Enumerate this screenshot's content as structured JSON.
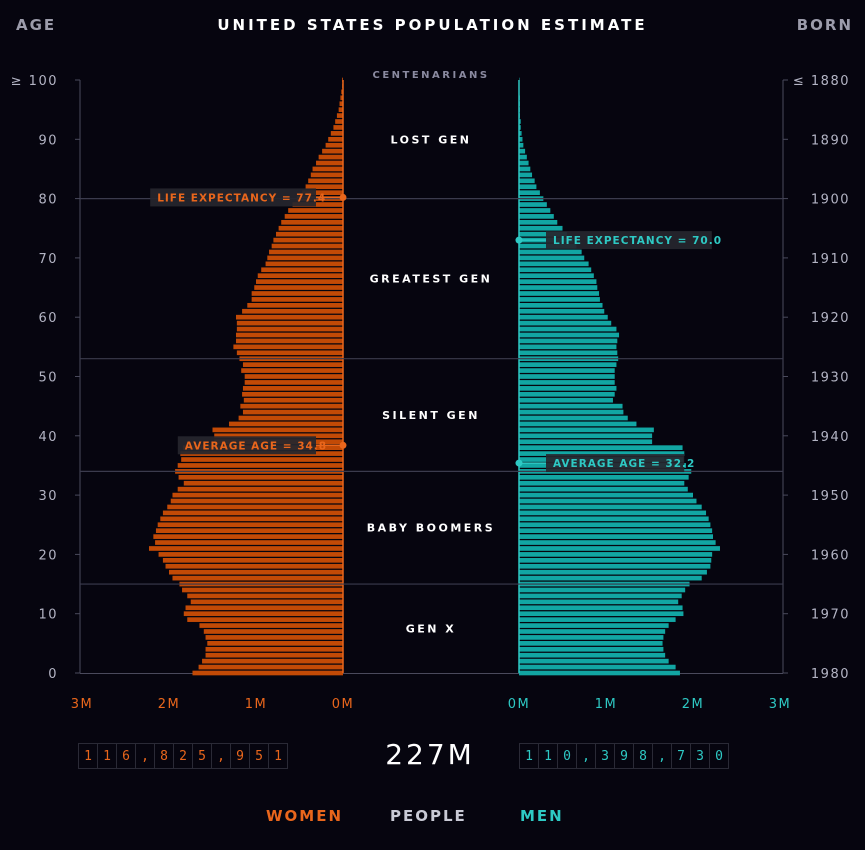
{
  "header": {
    "title": "UNITED STATES POPULATION ESTIMATE",
    "left_label": "AGE",
    "right_label": "BORN"
  },
  "colors": {
    "background": "#06050f",
    "women": "#e9661c",
    "women_dark": "#c24a06",
    "men": "#2ec9c4",
    "men_dark": "#12a6a3",
    "grid": "#3a3a4a",
    "text_muted": "#9c9cab"
  },
  "chart_data": {
    "type": "bar",
    "subtype": "population-pyramid",
    "title": "UNITED STATES POPULATION ESTIMATE",
    "age_axis": {
      "label": "AGE",
      "ticks": [
        "0",
        "10",
        "20",
        "30",
        "40",
        "50",
        "60",
        "70",
        "80",
        "90",
        "≥ 100"
      ],
      "range": [
        0,
        100
      ]
    },
    "born_axis": {
      "label": "BORN",
      "ticks": [
        "1980",
        "1970",
        "1960",
        "1950",
        "1940",
        "1930",
        "1920",
        "1910",
        "1900",
        "1890",
        "≤ 1880"
      ]
    },
    "women_axis_ticks": [
      "3M",
      "2M",
      "1M",
      "0M"
    ],
    "men_axis_ticks": [
      "0M",
      "1M",
      "2M",
      "3M"
    ],
    "x_range_millions": [
      0,
      3
    ],
    "generations": [
      {
        "name": "GEN X",
        "from_age": 0,
        "to_age": 15
      },
      {
        "name": "BABY BOOMERS",
        "from_age": 15,
        "to_age": 34
      },
      {
        "name": "SILENT GEN",
        "from_age": 34,
        "to_age": 53
      },
      {
        "name": "GREATEST GEN",
        "from_age": 53,
        "to_age": 80
      },
      {
        "name": "LOST GEN",
        "from_age": 80,
        "to_age": 100
      },
      {
        "name": "CENTENARIANS",
        "from_age": 100,
        "to_age": 100
      }
    ],
    "series": [
      {
        "name": "WOMEN",
        "values_millions": [
          1.73,
          1.66,
          1.62,
          1.58,
          1.58,
          1.56,
          1.58,
          1.6,
          1.65,
          1.79,
          1.83,
          1.81,
          1.75,
          1.79,
          1.85,
          1.88,
          1.96,
          2.0,
          2.04,
          2.07,
          2.12,
          2.23,
          2.16,
          2.18,
          2.15,
          2.13,
          2.1,
          2.07,
          2.02,
          1.98,
          1.96,
          1.9,
          1.83,
          1.89,
          1.93,
          1.9,
          1.86,
          1.87,
          1.84,
          1.48,
          1.48,
          1.5,
          1.31,
          1.2,
          1.15,
          1.18,
          1.14,
          1.16,
          1.15,
          1.13,
          1.13,
          1.17,
          1.15,
          1.19,
          1.22,
          1.26,
          1.23,
          1.23,
          1.22,
          1.22,
          1.23,
          1.16,
          1.1,
          1.05,
          1.05,
          1.02,
          1.0,
          0.98,
          0.94,
          0.89,
          0.87,
          0.85,
          0.82,
          0.8,
          0.77,
          0.74,
          0.71,
          0.67,
          0.63,
          0.58,
          0.53,
          0.47,
          0.43,
          0.4,
          0.37,
          0.35,
          0.31,
          0.28,
          0.24,
          0.2,
          0.17,
          0.14,
          0.11,
          0.09,
          0.07,
          0.05,
          0.04,
          0.03,
          0.02,
          0.01,
          0.01
        ]
      },
      {
        "name": "MEN",
        "values_millions": [
          1.85,
          1.8,
          1.72,
          1.68,
          1.66,
          1.65,
          1.66,
          1.68,
          1.72,
          1.8,
          1.89,
          1.88,
          1.83,
          1.87,
          1.91,
          1.96,
          2.1,
          2.16,
          2.2,
          2.21,
          2.22,
          2.31,
          2.26,
          2.23,
          2.22,
          2.2,
          2.18,
          2.15,
          2.1,
          2.04,
          2.0,
          1.94,
          1.9,
          1.95,
          1.98,
          1.92,
          1.89,
          1.9,
          1.88,
          1.53,
          1.53,
          1.55,
          1.35,
          1.25,
          1.2,
          1.19,
          1.08,
          1.1,
          1.12,
          1.1,
          1.1,
          1.1,
          1.12,
          1.14,
          1.13,
          1.12,
          1.13,
          1.15,
          1.12,
          1.06,
          1.02,
          0.98,
          0.96,
          0.93,
          0.92,
          0.9,
          0.89,
          0.86,
          0.83,
          0.8,
          0.75,
          0.72,
          0.66,
          0.62,
          0.55,
          0.5,
          0.44,
          0.4,
          0.36,
          0.32,
          0.28,
          0.24,
          0.2,
          0.18,
          0.15,
          0.13,
          0.11,
          0.09,
          0.07,
          0.05,
          0.04,
          0.03,
          0.02,
          0.02,
          0.01,
          0.01,
          0.01,
          0.01,
          0.0,
          0.0,
          0.0
        ]
      }
    ],
    "annotations": [
      {
        "side": "women",
        "text": "LIFE EXPECTANCY = 77.4",
        "age": 80.2
      },
      {
        "side": "women",
        "text": "AVERAGE AGE = 34.8",
        "age": 38.4
      },
      {
        "side": "men",
        "text": "LIFE EXPECTANCY = 70.0",
        "age": 73.0
      },
      {
        "side": "men",
        "text": "AVERAGE AGE = 32.2",
        "age": 35.4
      }
    ]
  },
  "totals": {
    "women_digits": [
      "1",
      "1",
      "6",
      ",",
      "8",
      "2",
      "5",
      ",",
      "9",
      "5",
      "1"
    ],
    "men_digits": [
      "1",
      "1",
      "0",
      ",",
      "3",
      "9",
      "8",
      ",",
      "7",
      "3",
      "0"
    ],
    "total": "227M"
  },
  "legend": {
    "women": "WOMEN",
    "people": "PEOPLE",
    "men": "MEN"
  }
}
